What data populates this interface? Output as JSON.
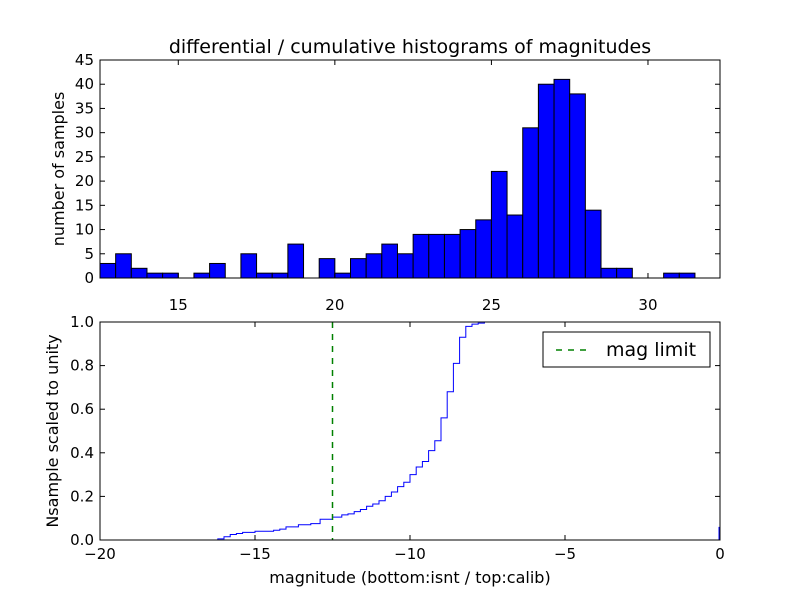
{
  "chart_data": [
    {
      "type": "bar",
      "title": "differential / cumulative histograms of magnitudes",
      "xlabel": "",
      "ylabel": "number of samples",
      "xlim": [
        12.5,
        32.3
      ],
      "ylim": [
        0,
        45
      ],
      "yticks": [
        0,
        5,
        10,
        15,
        20,
        25,
        30,
        35,
        40,
        45
      ],
      "xticks": [
        15,
        20,
        25,
        30
      ],
      "xtick_position": "bottom",
      "grid": false,
      "bar_color": "#0000ff",
      "bin_width": 0.5,
      "bins": [
        {
          "x0": 12.5,
          "value": 3
        },
        {
          "x0": 13.0,
          "value": 5
        },
        {
          "x0": 13.5,
          "value": 2
        },
        {
          "x0": 14.0,
          "value": 1
        },
        {
          "x0": 14.5,
          "value": 1
        },
        {
          "x0": 15.0,
          "value": 0
        },
        {
          "x0": 15.5,
          "value": 1
        },
        {
          "x0": 16.0,
          "value": 3
        },
        {
          "x0": 16.5,
          "value": 0
        },
        {
          "x0": 17.0,
          "value": 5
        },
        {
          "x0": 17.5,
          "value": 1
        },
        {
          "x0": 18.0,
          "value": 1
        },
        {
          "x0": 18.5,
          "value": 7
        },
        {
          "x0": 19.0,
          "value": 0
        },
        {
          "x0": 19.5,
          "value": 4
        },
        {
          "x0": 20.0,
          "value": 1
        },
        {
          "x0": 20.5,
          "value": 4
        },
        {
          "x0": 21.0,
          "value": 5
        },
        {
          "x0": 21.5,
          "value": 7
        },
        {
          "x0": 22.0,
          "value": 5
        },
        {
          "x0": 22.5,
          "value": 9
        },
        {
          "x0": 23.0,
          "value": 9
        },
        {
          "x0": 23.5,
          "value": 9
        },
        {
          "x0": 24.0,
          "value": 10
        },
        {
          "x0": 24.5,
          "value": 12
        },
        {
          "x0": 25.0,
          "value": 22
        },
        {
          "x0": 25.5,
          "value": 13
        },
        {
          "x0": 26.0,
          "value": 31
        },
        {
          "x0": 26.5,
          "value": 40
        },
        {
          "x0": 27.0,
          "value": 41
        },
        {
          "x0": 27.5,
          "value": 38
        },
        {
          "x0": 28.0,
          "value": 14
        },
        {
          "x0": 28.5,
          "value": 2
        },
        {
          "x0": 29.0,
          "value": 2
        },
        {
          "x0": 29.5,
          "value": 0
        },
        {
          "x0": 30.0,
          "value": 0
        },
        {
          "x0": 30.5,
          "value": 1
        },
        {
          "x0": 31.0,
          "value": 1
        }
      ]
    },
    {
      "type": "line",
      "title": "",
      "xlabel": "magnitude (bottom:isnt / top:calib)",
      "ylabel": "Nsample scaled to unity",
      "xlim": [
        -20,
        0
      ],
      "ylim": [
        0,
        1
      ],
      "xticks": [
        -20,
        -15,
        -10,
        -5,
        0
      ],
      "xtick_labels": [
        "−20",
        "−15",
        "−10",
        "−5",
        "0"
      ],
      "yticks": [
        0.0,
        0.2,
        0.4,
        0.6,
        0.8,
        1.0
      ],
      "ytick_labels": [
        "0.0",
        "0.2",
        "0.4",
        "0.6",
        "0.8",
        "1.0"
      ],
      "grid": false,
      "legend_position": "top-right",
      "series": [
        {
          "name": "",
          "style": "step",
          "color": "#0000ff",
          "points": [
            [
              -20.0,
              0.0
            ],
            [
              -16.4,
              0.0
            ],
            [
              -16.2,
              0.005
            ],
            [
              -16.0,
              0.015
            ],
            [
              -15.8,
              0.025
            ],
            [
              -15.6,
              0.03
            ],
            [
              -15.4,
              0.035
            ],
            [
              -15.0,
              0.04
            ],
            [
              -14.4,
              0.045
            ],
            [
              -14.2,
              0.05
            ],
            [
              -14.0,
              0.06
            ],
            [
              -13.6,
              0.07
            ],
            [
              -13.2,
              0.075
            ],
            [
              -12.9,
              0.095
            ],
            [
              -12.5,
              0.105
            ],
            [
              -12.2,
              0.115
            ],
            [
              -12.0,
              0.12
            ],
            [
              -11.8,
              0.13
            ],
            [
              -11.6,
              0.14
            ],
            [
              -11.4,
              0.155
            ],
            [
              -11.2,
              0.165
            ],
            [
              -11.0,
              0.18
            ],
            [
              -10.8,
              0.2
            ],
            [
              -10.6,
              0.22
            ],
            [
              -10.4,
              0.245
            ],
            [
              -10.2,
              0.265
            ],
            [
              -10.0,
              0.3
            ],
            [
              -9.8,
              0.335
            ],
            [
              -9.6,
              0.36
            ],
            [
              -9.4,
              0.41
            ],
            [
              -9.2,
              0.455
            ],
            [
              -9.0,
              0.56
            ],
            [
              -8.8,
              0.68
            ],
            [
              -8.6,
              0.81
            ],
            [
              -8.4,
              0.93
            ],
            [
              -8.2,
              0.98
            ],
            [
              -8.0,
              0.99
            ],
            [
              -7.8,
              0.995
            ],
            [
              -7.6,
              1.0
            ],
            [
              -0.1,
              1.0
            ]
          ]
        },
        {
          "name": "mag limit",
          "style": "dashed-vertical",
          "color": "#008000",
          "x": -12.5
        }
      ]
    }
  ]
}
